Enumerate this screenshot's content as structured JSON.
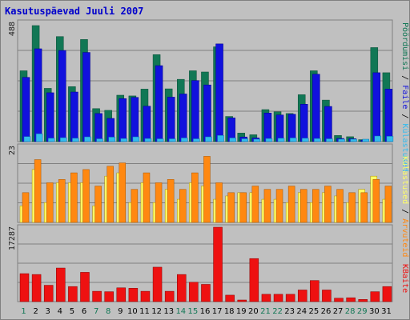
{
  "title": "Kasutuspäevad Juuli 2007",
  "colors": {
    "kylastused": "#117755",
    "failid": "#1111dd",
    "poordumised": "#33bbee",
    "arvutid": "#ffff66",
    "kylastused2": "#ff8811",
    "kbaidid": "#ee1111",
    "weekend": "#117755",
    "weekday": "#000000",
    "panel": "#c0c0c0"
  },
  "right_labels": {
    "kylastused": "Külastused",
    "failid": "Faile",
    "poordumised": "Pöördumisi",
    "arvutid": "Arvuteid",
    "kbaidid": "KBaite",
    "sep": " / "
  },
  "chart_data": [
    {
      "type": "bar",
      "panel": "top",
      "ymax_label": "488",
      "ylim": [
        0,
        488
      ],
      "categories": [
        "1",
        "2",
        "3",
        "4",
        "5",
        "6",
        "7",
        "8",
        "9",
        "10",
        "11",
        "12",
        "13",
        "14",
        "15",
        "16",
        "17",
        "18",
        "19",
        "20",
        "21",
        "22",
        "23",
        "24",
        "25",
        "26",
        "27",
        "28",
        "29",
        "30",
        "31"
      ],
      "series": [
        {
          "name": "Pöördumisi",
          "values": [
            290,
            475,
            218,
            430,
            225,
            418,
            135,
            128,
            190,
            187,
            215,
            356,
            216,
            255,
            290,
            285,
            388,
            103,
            35,
            28,
            131,
            122,
            115,
            192,
            290,
            170,
            25,
            20,
            8,
            385,
            282
          ]
        },
        {
          "name": "Faile",
          "values": [
            263,
            380,
            200,
            373,
            203,
            365,
            115,
            95,
            176,
            181,
            145,
            311,
            182,
            195,
            250,
            232,
            400,
            97,
            19,
            15,
            117,
            109,
            112,
            153,
            276,
            144,
            13,
            12,
            6,
            282,
            215
          ]
        },
        {
          "name": "Külastused",
          "values": [
            18,
            28,
            12,
            14,
            12,
            17,
            10,
            16,
            11,
            17,
            11,
            10,
            10,
            13,
            10,
            17,
            22,
            13,
            10,
            6,
            11,
            12,
            13,
            12,
            11,
            10,
            6,
            6,
            6,
            20,
            19
          ]
        }
      ]
    },
    {
      "type": "bar",
      "panel": "middle",
      "ymax_label": "23",
      "ylim": [
        0,
        23
      ],
      "categories": [
        "1",
        "2",
        "3",
        "4",
        "5",
        "6",
        "7",
        "8",
        "9",
        "10",
        "11",
        "12",
        "13",
        "14",
        "15",
        "16",
        "17",
        "18",
        "19",
        "20",
        "21",
        "22",
        "23",
        "24",
        "25",
        "26",
        "27",
        "28",
        "29",
        "30",
        "31"
      ],
      "series": [
        {
          "name": "Arvuteid",
          "values": [
            5,
            16,
            6,
            12,
            12,
            12,
            5,
            14,
            15,
            6,
            12,
            6,
            10,
            7,
            12,
            11,
            7,
            8,
            9,
            9,
            7,
            7,
            6,
            9,
            6,
            9,
            8,
            6,
            10,
            14,
            7
          ]
        },
        {
          "name": "Külastused",
          "values": [
            9,
            19,
            12,
            13,
            15,
            16,
            11,
            17,
            18,
            10,
            15,
            12,
            13,
            10,
            15,
            20,
            12,
            9,
            9,
            11,
            10,
            10,
            11,
            10,
            10,
            11,
            10,
            9,
            9,
            13,
            11
          ]
        }
      ]
    },
    {
      "type": "bar",
      "panel": "bottom",
      "ymax_label": "17287",
      "ylim": [
        0,
        17287
      ],
      "categories": [
        "1",
        "2",
        "3",
        "4",
        "5",
        "6",
        "7",
        "8",
        "9",
        "10",
        "11",
        "12",
        "13",
        "14",
        "15",
        "16",
        "17",
        "18",
        "19",
        "20",
        "21",
        "22",
        "23",
        "24",
        "25",
        "26",
        "27",
        "28",
        "29",
        "30",
        "31"
      ],
      "series": [
        {
          "name": "KBaite",
          "values": [
            6500,
            6300,
            3800,
            7800,
            3500,
            6800,
            2400,
            2300,
            3200,
            3100,
            2400,
            8000,
            2400,
            6300,
            4500,
            4000,
            17287,
            1500,
            200,
            10000,
            1700,
            1700,
            1700,
            2700,
            4900,
            2700,
            800,
            900,
            500,
            2300,
            3500
          ]
        }
      ]
    }
  ]
}
